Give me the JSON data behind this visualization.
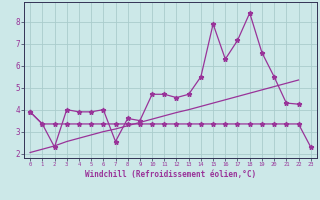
{
  "xlabel": "Windchill (Refroidissement éolien,°C)",
  "bg_color": "#cce8e8",
  "line_color": "#993399",
  "grid_color": "#aacccc",
  "xlim": [
    -0.5,
    23.5
  ],
  "ylim": [
    1.8,
    8.9
  ],
  "yticks": [
    2,
    3,
    4,
    5,
    6,
    7,
    8
  ],
  "xticks": [
    0,
    1,
    2,
    3,
    4,
    5,
    6,
    7,
    8,
    9,
    10,
    11,
    12,
    13,
    14,
    15,
    16,
    17,
    18,
    19,
    20,
    21,
    22,
    23
  ],
  "x_data": [
    0,
    1,
    2,
    3,
    4,
    5,
    6,
    7,
    8,
    9,
    10,
    11,
    12,
    13,
    14,
    15,
    16,
    17,
    18,
    19,
    20,
    21,
    22,
    23
  ],
  "series_scatter": [
    3.9,
    3.35,
    2.3,
    4.0,
    3.9,
    3.9,
    4.0,
    2.55,
    3.6,
    3.5,
    4.7,
    4.7,
    4.55,
    4.7,
    5.5,
    7.9,
    6.3,
    7.15,
    8.4,
    6.6,
    5.5,
    4.3,
    4.25,
    null
  ],
  "series_flat": [
    3.9,
    3.35,
    3.35,
    3.35,
    3.35,
    3.35,
    3.35,
    3.35,
    3.35,
    3.35,
    3.35,
    3.35,
    3.35,
    3.35,
    3.35,
    3.35,
    3.35,
    3.35,
    3.35,
    3.35,
    3.35,
    3.35,
    3.35,
    2.3
  ],
  "series_reg": [
    2.05,
    2.2,
    2.35,
    2.55,
    2.7,
    2.85,
    3.0,
    3.12,
    3.27,
    3.42,
    3.57,
    3.72,
    3.87,
    4.0,
    4.15,
    4.3,
    4.45,
    4.6,
    4.75,
    4.9,
    5.05,
    5.2,
    5.35,
    null
  ],
  "spine_color": "#333355",
  "tick_label_color": "#993399",
  "xlabel_color": "#993399"
}
